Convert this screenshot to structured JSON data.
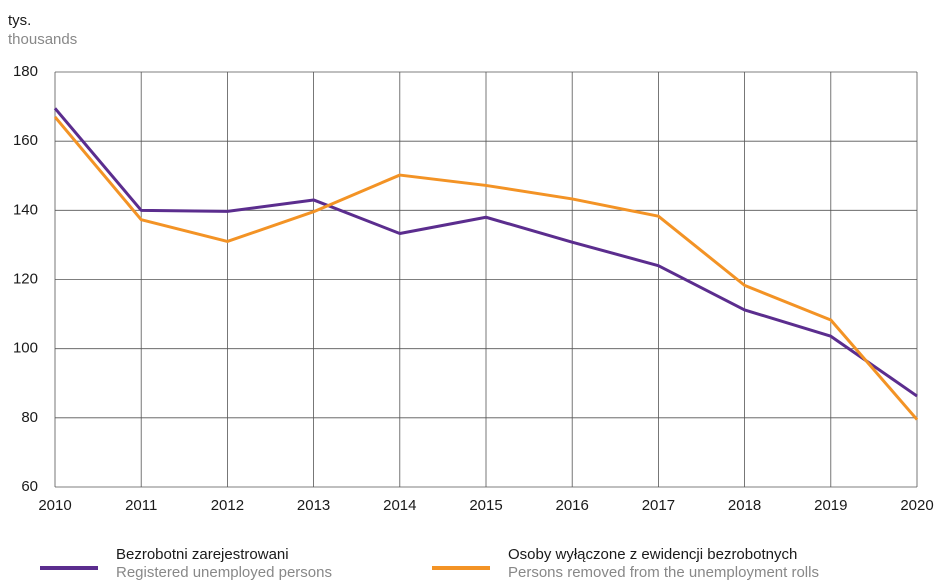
{
  "chart_data": {
    "type": "line",
    "y_unit": "tys.",
    "y_unit_en": "thousands",
    "x": [
      2010,
      2011,
      2012,
      2013,
      2014,
      2015,
      2016,
      2017,
      2018,
      2019,
      2020
    ],
    "xlim": [
      2010,
      2020
    ],
    "xticks": [
      2010,
      2011,
      2012,
      2013,
      2014,
      2015,
      2016,
      2017,
      2018,
      2019,
      2020
    ],
    "ylim": [
      60,
      180
    ],
    "yticks": [
      60,
      80,
      100,
      120,
      140,
      160,
      180
    ],
    "grid": true,
    "legend": "bottom",
    "series": [
      {
        "name": "Bezrobotni zarejestrowani",
        "name_en": "Registered unemployed persons",
        "color": "#5b2d8e",
        "values": [
          169.5,
          140,
          139.7,
          143,
          133.3,
          138,
          130.8,
          124,
          111.2,
          103.6,
          86.3
        ]
      },
      {
        "name": "Osoby wyłączone z ewidencji bezrobotnych",
        "name_en": "Persons removed from the unemployment rolls",
        "color": "#f39325",
        "values": [
          167,
          137.3,
          131,
          139.6,
          150.2,
          147.2,
          143.3,
          138.3,
          118.3,
          108.3,
          79.5
        ]
      }
    ]
  }
}
